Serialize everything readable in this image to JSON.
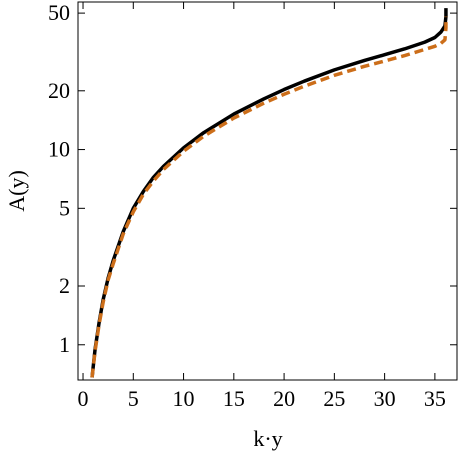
{
  "chart_data": {
    "type": "line",
    "x_label": "k·y",
    "y_label": "A(y)",
    "x": [
      0.9,
      1.2,
      1.6,
      2,
      2.5,
      3,
      4,
      5,
      6,
      7,
      8,
      10,
      12,
      15,
      18,
      20,
      22,
      25,
      28,
      30,
      32,
      34,
      35,
      35.6,
      36,
      36.1,
      36.1
    ],
    "series": [
      {
        "color": "#000000",
        "dashed": false,
        "values": [
          0.68,
          0.95,
          1.3,
          1.7,
          2.2,
          2.7,
          3.8,
          5.0,
          6.1,
          7.2,
          8.2,
          10.2,
          12.2,
          15.2,
          18.2,
          20.3,
          22.4,
          25.6,
          28.6,
          30.6,
          32.8,
          35.5,
          37.5,
          40,
          43,
          48,
          53
        ]
      },
      {
        "color": "#cc6e1a",
        "dashed": true,
        "values": [
          0.68,
          0.93,
          1.27,
          1.65,
          2.15,
          2.6,
          3.7,
          4.8,
          5.9,
          6.9,
          7.9,
          9.8,
          11.7,
          14.5,
          17.3,
          19.2,
          21.1,
          24,
          26.7,
          28.4,
          30.3,
          32.6,
          33.8,
          35,
          36.5,
          42,
          48
        ]
      }
    ],
    "xlim": [
      -0.5,
      37.2
    ],
    "xticks": [
      0,
      5,
      10,
      15,
      20,
      25,
      30,
      35
    ],
    "ylim": [
      0.66,
      57
    ],
    "yticks": [
      1,
      2,
      5,
      10,
      20,
      50
    ],
    "y_log": true
  }
}
